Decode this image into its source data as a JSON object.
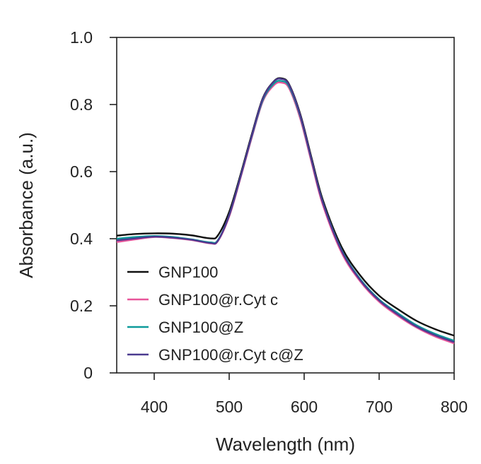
{
  "chart_data": {
    "type": "line",
    "title": "",
    "xlabel": "Wavelength (nm)",
    "ylabel": "Absorbance (a.u.)",
    "xlim": [
      350,
      800
    ],
    "ylim": [
      0,
      1.0
    ],
    "xticks": [
      400,
      500,
      600,
      700,
      800
    ],
    "xtick_labels": [
      "400",
      "500",
      "600",
      "700",
      "800"
    ],
    "yticks": [
      0,
      0.2,
      0.4,
      0.6,
      0.8,
      1.0
    ],
    "ytick_labels": [
      "0",
      "0.2",
      "0.4",
      "0.6",
      "0.8",
      "1.0"
    ],
    "grid": false,
    "legend_position": "lower-left",
    "x": [
      350,
      375,
      400,
      425,
      450,
      475,
      485,
      500,
      515,
      530,
      545,
      560,
      570,
      580,
      595,
      610,
      625,
      650,
      675,
      700,
      725,
      750,
      775,
      800
    ],
    "series": [
      {
        "name": "GNP100",
        "color": "#111111",
        "values": [
          0.409,
          0.414,
          0.416,
          0.415,
          0.41,
          0.401,
          0.41,
          0.48,
          0.59,
          0.71,
          0.82,
          0.87,
          0.878,
          0.86,
          0.77,
          0.64,
          0.515,
          0.375,
          0.29,
          0.23,
          0.19,
          0.155,
          0.13,
          0.111
        ]
      },
      {
        "name": "GNP100@r.Cyt c",
        "color": "#e8559a",
        "values": [
          0.39,
          0.398,
          0.405,
          0.402,
          0.396,
          0.386,
          0.393,
          0.466,
          0.58,
          0.7,
          0.81,
          0.858,
          0.865,
          0.848,
          0.756,
          0.626,
          0.5,
          0.358,
          0.272,
          0.212,
          0.17,
          0.135,
          0.108,
          0.088
        ]
      },
      {
        "name": "GNP100@Z",
        "color": "#0d9a9a",
        "values": [
          0.4,
          0.405,
          0.408,
          0.405,
          0.398,
          0.389,
          0.396,
          0.47,
          0.584,
          0.704,
          0.814,
          0.863,
          0.87,
          0.853,
          0.763,
          0.633,
          0.508,
          0.366,
          0.279,
          0.219,
          0.178,
          0.142,
          0.116,
          0.096
        ]
      },
      {
        "name": "GNP100@r.Cyt c@Z",
        "color": "#4b3a8f",
        "values": [
          0.395,
          0.401,
          0.406,
          0.403,
          0.397,
          0.387,
          0.394,
          0.47,
          0.584,
          0.706,
          0.818,
          0.869,
          0.876,
          0.858,
          0.766,
          0.634,
          0.507,
          0.364,
          0.276,
          0.216,
          0.174,
          0.138,
          0.112,
          0.092
        ]
      }
    ]
  }
}
